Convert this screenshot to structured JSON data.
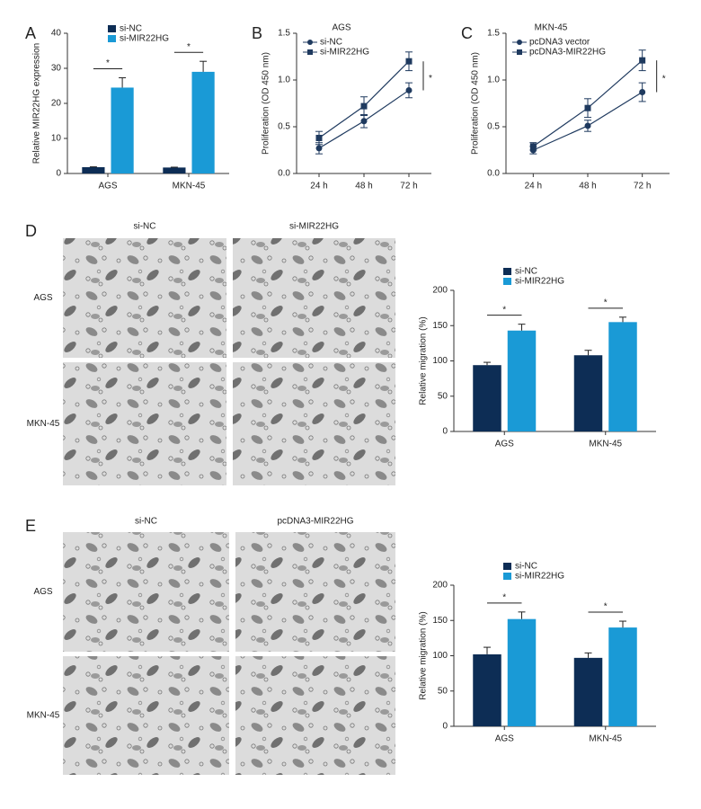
{
  "chart_data": [
    {
      "type": "bar",
      "panel": "A",
      "ylabel": "Relative MIR22HG expression",
      "categories": [
        "AGS",
        "MKN-45"
      ],
      "series": [
        {
          "name": "si-NC",
          "color": "#0d2d55",
          "values": [
            1.8,
            1.7
          ],
          "errors": [
            0.1,
            0.1
          ]
        },
        {
          "name": "si-MIR22HG",
          "color": "#1a9ad6",
          "values": [
            24.5,
            29
          ],
          "errors": [
            2.8,
            3
          ]
        }
      ],
      "ylim": [
        0,
        40
      ],
      "yticks": [
        0,
        10,
        20,
        30,
        40
      ],
      "annotations": [
        "*",
        "*"
      ]
    },
    {
      "type": "line",
      "panel": "B",
      "title": "AGS",
      "ylabel": "Proliferation (OD 450 nm)",
      "categories": [
        "24 h",
        "48 h",
        "72 h"
      ],
      "series": [
        {
          "name": "si-NC",
          "color": "#1f3a5f",
          "marker": "circle",
          "values": [
            0.27,
            0.56,
            0.89
          ],
          "errors": [
            0.06,
            0.07,
            0.08
          ]
        },
        {
          "name": "si-MIR22HG",
          "color": "#1f3a5f",
          "marker": "square",
          "values": [
            0.38,
            0.72,
            1.2
          ],
          "errors": [
            0.07,
            0.1,
            0.1
          ]
        }
      ],
      "ylim": [
        0,
        1.5
      ],
      "yticks": [
        {
          "value": 0,
          "label": "0.0"
        },
        0.5,
        {
          "value": 1,
          "label": "1.0"
        },
        1.5
      ],
      "annotations": [
        "*"
      ]
    },
    {
      "type": "line",
      "panel": "C",
      "title": "MKN-45",
      "ylabel": "Proliferation (OD 450 nm)",
      "categories": [
        "24 h",
        "48 h",
        "72 h"
      ],
      "series": [
        {
          "name": "pcDNA3 vector",
          "color": "#1f3a5f",
          "marker": "circle",
          "values": [
            0.25,
            0.51,
            0.87
          ],
          "errors": [
            0.04,
            0.06,
            0.1
          ]
        },
        {
          "name": "pcDNA3-MIR22HG",
          "color": "#1f3a5f",
          "marker": "square",
          "values": [
            0.29,
            0.7,
            1.21
          ],
          "errors": [
            0.04,
            0.1,
            0.11
          ]
        }
      ],
      "ylim": [
        0,
        1.5
      ],
      "yticks": [
        {
          "value": 0,
          "label": "0.0"
        },
        0.5,
        {
          "value": 1,
          "label": "1.0"
        },
        1.5
      ],
      "annotations": [
        "*"
      ]
    },
    {
      "type": "bar",
      "panel": "D",
      "ylabel": "Relative migration (%)",
      "categories": [
        "AGS",
        "MKN-45"
      ],
      "series": [
        {
          "name": "si-NC",
          "color": "#0d2d55",
          "values": [
            94,
            108
          ],
          "errors": [
            4,
            7
          ]
        },
        {
          "name": "si-MIR22HG",
          "color": "#1a9ad6",
          "values": [
            143,
            155
          ],
          "errors": [
            9,
            7
          ]
        }
      ],
      "ylim": [
        0,
        200
      ],
      "yticks": [
        0,
        50,
        100,
        150,
        200
      ],
      "annotations": [
        "*",
        "*"
      ]
    },
    {
      "type": "bar",
      "panel": "E",
      "ylabel": "Relative migration (%)",
      "categories": [
        "AGS",
        "MKN-45"
      ],
      "series": [
        {
          "name": "si-NC",
          "color": "#0d2d55",
          "values": [
            102,
            97
          ],
          "errors": [
            10,
            7
          ]
        },
        {
          "name": "si-MIR22HG",
          "color": "#1a9ad6",
          "values": [
            152,
            140
          ],
          "errors": [
            10,
            9
          ]
        }
      ],
      "ylim": [
        0,
        200
      ],
      "yticks": [
        0,
        50,
        100,
        150,
        200
      ],
      "annotations": [
        "*",
        "*"
      ]
    }
  ],
  "image_panels": [
    {
      "columns": [
        "si-NC",
        "si-MIR22HG"
      ],
      "rows": [
        "AGS",
        "MKN-45"
      ]
    },
    {
      "columns": [
        "si-NC",
        "pcDNA3-MIR22HG"
      ],
      "rows": [
        "AGS",
        "MKN-45"
      ]
    }
  ]
}
